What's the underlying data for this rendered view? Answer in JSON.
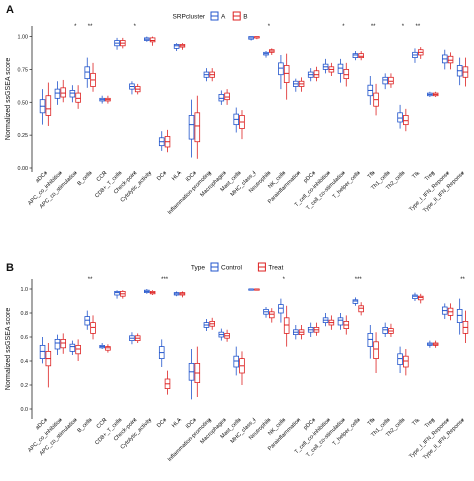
{
  "chart_data": [
    {
      "type": "boxplot",
      "panel": "A",
      "ylabel": "Normalized ssGSEA score",
      "ylim": [
        0,
        1.05
      ],
      "yticks": [
        "0.00",
        "0.25",
        "0.50",
        "0.75",
        "1.00"
      ],
      "legend": {
        "title": "SRPcluster",
        "position": "top-center",
        "entries": [
          "A",
          "B"
        ]
      },
      "series": [
        {
          "name": "A",
          "color": "#2255cc"
        },
        {
          "name": "B",
          "color": "#dd2222"
        }
      ],
      "categories": [
        "aDCs",
        "APC_co_inhibition",
        "APC_co_stimulation",
        "B_cells",
        "CCR",
        "CD8+_T_cells",
        "Check-point",
        "Cytolytic_activity",
        "DCs",
        "HLA",
        "iDCs",
        "Inflammation-promoting",
        "Macrophages",
        "Mast_cells",
        "MHC_class_I",
        "Neutrophils",
        "NK_cells",
        "Parainflammation",
        "pDCs",
        "T_cell_co-inhibition",
        "T_cell_co-stimulation",
        "T_helper_cells",
        "Tfh",
        "Th1_cells",
        "Th2_cells",
        "TIL",
        "Treg",
        "Type_I_IFN_Reponse",
        "Type_II_IFN_Reponse"
      ],
      "significance": [
        "",
        "",
        "*",
        "**",
        "",
        "",
        "*",
        "",
        "",
        "",
        "",
        "",
        "",
        "",
        "",
        "*",
        "",
        "",
        "",
        "",
        "*",
        "",
        "**",
        "",
        "*",
        "**",
        "",
        "",
        ""
      ],
      "boxes": [
        [
          [
            0.33,
            0.42,
            0.47,
            0.52,
            0.6
          ],
          [
            0.32,
            0.4,
            0.45,
            0.55,
            0.65
          ]
        ],
        [
          [
            0.48,
            0.53,
            0.57,
            0.6,
            0.66
          ],
          [
            0.5,
            0.54,
            0.57,
            0.61,
            0.67
          ]
        ],
        [
          [
            0.5,
            0.54,
            0.57,
            0.59,
            0.63
          ],
          [
            0.45,
            0.5,
            0.53,
            0.57,
            0.63
          ]
        ],
        [
          [
            0.61,
            0.68,
            0.73,
            0.77,
            0.84
          ],
          [
            0.58,
            0.62,
            0.67,
            0.72,
            0.8
          ]
        ],
        [
          [
            0.49,
            0.51,
            0.52,
            0.53,
            0.55
          ],
          [
            0.49,
            0.51,
            0.52,
            0.53,
            0.55
          ]
        ],
        [
          [
            0.9,
            0.93,
            0.95,
            0.97,
            0.99
          ],
          [
            0.91,
            0.93,
            0.95,
            0.97,
            0.99
          ]
        ],
        [
          [
            0.56,
            0.6,
            0.62,
            0.64,
            0.66
          ],
          [
            0.56,
            0.58,
            0.6,
            0.62,
            0.64
          ]
        ],
        [
          [
            0.96,
            0.97,
            0.98,
            0.99,
            1.0
          ],
          [
            0.93,
            0.96,
            0.97,
            0.99,
            1.0
          ]
        ],
        [
          [
            0.13,
            0.17,
            0.2,
            0.23,
            0.28
          ],
          [
            0.12,
            0.16,
            0.2,
            0.24,
            0.29
          ]
        ],
        [
          [
            0.89,
            0.91,
            0.93,
            0.94,
            0.95
          ],
          [
            0.9,
            0.92,
            0.93,
            0.94,
            0.95
          ]
        ],
        [
          [
            0.08,
            0.22,
            0.33,
            0.4,
            0.52
          ],
          [
            0.07,
            0.2,
            0.32,
            0.42,
            0.55
          ]
        ],
        [
          [
            0.66,
            0.69,
            0.71,
            0.73,
            0.76
          ],
          [
            0.66,
            0.69,
            0.71,
            0.73,
            0.76
          ]
        ],
        [
          [
            0.48,
            0.51,
            0.53,
            0.56,
            0.59
          ],
          [
            0.48,
            0.52,
            0.54,
            0.57,
            0.6
          ]
        ],
        [
          [
            0.27,
            0.33,
            0.37,
            0.41,
            0.46
          ],
          [
            0.22,
            0.3,
            0.35,
            0.4,
            0.44
          ]
        ],
        [
          [
            0.97,
            0.98,
            0.99,
            1.0,
            1.0
          ],
          [
            0.98,
            0.99,
            0.99,
            1.0,
            1.0
          ]
        ],
        [
          [
            0.84,
            0.86,
            0.87,
            0.88,
            0.89
          ],
          [
            0.86,
            0.88,
            0.89,
            0.9,
            0.91
          ]
        ],
        [
          [
            0.6,
            0.71,
            0.76,
            0.8,
            0.86
          ],
          [
            0.52,
            0.65,
            0.72,
            0.78,
            0.87
          ]
        ],
        [
          [
            0.58,
            0.62,
            0.64,
            0.66,
            0.68
          ],
          [
            0.58,
            0.62,
            0.64,
            0.66,
            0.69
          ]
        ],
        [
          [
            0.66,
            0.69,
            0.71,
            0.73,
            0.76
          ],
          [
            0.66,
            0.69,
            0.71,
            0.74,
            0.77
          ]
        ],
        [
          [
            0.72,
            0.75,
            0.77,
            0.79,
            0.83
          ],
          [
            0.7,
            0.73,
            0.75,
            0.77,
            0.8
          ]
        ],
        [
          [
            0.65,
            0.72,
            0.76,
            0.79,
            0.83
          ],
          [
            0.62,
            0.68,
            0.71,
            0.75,
            0.8
          ]
        ],
        [
          [
            0.82,
            0.84,
            0.86,
            0.87,
            0.89
          ],
          [
            0.82,
            0.84,
            0.85,
            0.87,
            0.89
          ]
        ],
        [
          [
            0.48,
            0.55,
            0.59,
            0.63,
            0.7
          ],
          [
            0.4,
            0.47,
            0.52,
            0.57,
            0.64
          ]
        ],
        [
          [
            0.6,
            0.64,
            0.67,
            0.69,
            0.72
          ],
          [
            0.61,
            0.64,
            0.66,
            0.69,
            0.72
          ]
        ],
        [
          [
            0.3,
            0.35,
            0.38,
            0.42,
            0.48
          ],
          [
            0.28,
            0.33,
            0.36,
            0.4,
            0.45
          ]
        ],
        [
          [
            0.8,
            0.84,
            0.86,
            0.88,
            0.91
          ],
          [
            0.83,
            0.86,
            0.88,
            0.9,
            0.92
          ]
        ],
        [
          [
            0.54,
            0.55,
            0.56,
            0.57,
            0.58
          ],
          [
            0.54,
            0.55,
            0.56,
            0.57,
            0.58
          ]
        ],
        [
          [
            0.75,
            0.8,
            0.83,
            0.86,
            0.9
          ],
          [
            0.75,
            0.8,
            0.82,
            0.85,
            0.88
          ]
        ],
        [
          [
            0.63,
            0.7,
            0.74,
            0.78,
            0.84
          ],
          [
            0.62,
            0.69,
            0.73,
            0.77,
            0.84
          ]
        ]
      ]
    },
    {
      "type": "boxplot",
      "panel": "B",
      "ylabel": "Normalized ssGSEA score",
      "ylim": [
        -0.05,
        1.05
      ],
      "yticks": [
        "0.0",
        "0.2",
        "0.4",
        "0.6",
        "0.8",
        "1.0"
      ],
      "legend": {
        "title": "Type",
        "position": "top-center",
        "entries": [
          "Control",
          "Treat"
        ]
      },
      "series": [
        {
          "name": "Control",
          "color": "#2255cc"
        },
        {
          "name": "Treat",
          "color": "#dd2222"
        }
      ],
      "categories": [
        "aDCs",
        "APC_co_inhibition",
        "APC_co_stimulation",
        "B_cells",
        "CCR",
        "CD8+_T_cells",
        "Check-point",
        "Cytolytic_activity",
        "DCs",
        "HLA",
        "iDCs",
        "Inflammation-promoting",
        "Macrophages",
        "Mast_cells",
        "MHC_class_I",
        "Neutrophils",
        "NK_cells",
        "Parainflammation",
        "pDCs",
        "T_cell_co-inhibition",
        "T_cell_co-stimulation",
        "T_helper_cells",
        "Tfh",
        "Th1_cells",
        "Th2_cells",
        "TIL",
        "Treg",
        "Type_I_IFN_Reponse",
        "Type_II_IFN_Reponse"
      ],
      "significance": [
        "",
        "",
        "",
        "**",
        "",
        "",
        "",
        "",
        "***",
        "",
        "",
        "",
        "",
        "",
        "",
        "",
        "*",
        "",
        "",
        "",
        "",
        "***",
        "",
        "",
        "",
        "",
        "",
        "",
        "**"
      ],
      "boxes": [
        [
          [
            0.38,
            0.42,
            0.48,
            0.53,
            0.6
          ],
          [
            0.18,
            0.36,
            0.42,
            0.48,
            0.55
          ]
        ],
        [
          [
            0.45,
            0.5,
            0.55,
            0.58,
            0.62
          ],
          [
            0.46,
            0.51,
            0.55,
            0.58,
            0.63
          ]
        ],
        [
          [
            0.45,
            0.48,
            0.52,
            0.54,
            0.57
          ],
          [
            0.4,
            0.46,
            0.5,
            0.53,
            0.58
          ]
        ],
        [
          [
            0.66,
            0.7,
            0.74,
            0.77,
            0.82
          ],
          [
            0.58,
            0.63,
            0.68,
            0.72,
            0.78
          ]
        ],
        [
          [
            0.5,
            0.51,
            0.52,
            0.53,
            0.55
          ],
          [
            0.47,
            0.49,
            0.51,
            0.52,
            0.54
          ]
        ],
        [
          [
            0.92,
            0.95,
            0.97,
            0.98,
            0.99
          ],
          [
            0.92,
            0.94,
            0.96,
            0.98,
            0.99
          ]
        ],
        [
          [
            0.54,
            0.57,
            0.59,
            0.61,
            0.64
          ],
          [
            0.55,
            0.57,
            0.59,
            0.61,
            0.63
          ]
        ],
        [
          [
            0.96,
            0.97,
            0.98,
            0.99,
            1.0
          ],
          [
            0.95,
            0.96,
            0.97,
            0.98,
            0.99
          ]
        ],
        [
          [
            0.35,
            0.42,
            0.47,
            0.52,
            0.58
          ],
          [
            0.12,
            0.17,
            0.21,
            0.25,
            0.32
          ]
        ],
        [
          [
            0.94,
            0.95,
            0.96,
            0.97,
            0.98
          ],
          [
            0.93,
            0.95,
            0.96,
            0.97,
            0.98
          ]
        ],
        [
          [
            0.08,
            0.24,
            0.31,
            0.38,
            0.5
          ],
          [
            0.1,
            0.22,
            0.3,
            0.38,
            0.52
          ]
        ],
        [
          [
            0.65,
            0.68,
            0.7,
            0.72,
            0.75
          ],
          [
            0.66,
            0.69,
            0.71,
            0.73,
            0.76
          ]
        ],
        [
          [
            0.57,
            0.6,
            0.62,
            0.64,
            0.67
          ],
          [
            0.56,
            0.59,
            0.61,
            0.63,
            0.66
          ]
        ],
        [
          [
            0.28,
            0.35,
            0.4,
            0.44,
            0.52
          ],
          [
            0.2,
            0.3,
            0.36,
            0.42,
            0.48
          ]
        ],
        [
          [
            0.99,
            0.99,
            1.0,
            1.0,
            1.0
          ],
          [
            0.99,
            0.99,
            1.0,
            1.0,
            1.0
          ]
        ],
        [
          [
            0.76,
            0.79,
            0.81,
            0.83,
            0.85
          ],
          [
            0.72,
            0.76,
            0.79,
            0.81,
            0.84
          ]
        ],
        [
          [
            0.72,
            0.8,
            0.84,
            0.87,
            0.92
          ],
          [
            0.52,
            0.63,
            0.7,
            0.76,
            0.86
          ]
        ],
        [
          [
            0.58,
            0.62,
            0.64,
            0.66,
            0.7
          ],
          [
            0.58,
            0.62,
            0.64,
            0.66,
            0.7
          ]
        ],
        [
          [
            0.6,
            0.64,
            0.66,
            0.68,
            0.72
          ],
          [
            0.61,
            0.64,
            0.66,
            0.68,
            0.72
          ]
        ],
        [
          [
            0.69,
            0.72,
            0.74,
            0.76,
            0.8
          ],
          [
            0.66,
            0.7,
            0.72,
            0.74,
            0.78
          ]
        ],
        [
          [
            0.66,
            0.7,
            0.74,
            0.76,
            0.8
          ],
          [
            0.62,
            0.67,
            0.7,
            0.73,
            0.78
          ]
        ],
        [
          [
            0.86,
            0.88,
            0.9,
            0.91,
            0.93
          ],
          [
            0.78,
            0.81,
            0.84,
            0.86,
            0.89
          ]
        ],
        [
          [
            0.42,
            0.52,
            0.58,
            0.63,
            0.7
          ],
          [
            0.3,
            0.42,
            0.5,
            0.56,
            0.64
          ]
        ],
        [
          [
            0.6,
            0.63,
            0.66,
            0.68,
            0.72
          ],
          [
            0.6,
            0.63,
            0.65,
            0.67,
            0.71
          ]
        ],
        [
          [
            0.3,
            0.37,
            0.42,
            0.46,
            0.52
          ],
          [
            0.28,
            0.35,
            0.4,
            0.44,
            0.5
          ]
        ],
        [
          [
            0.9,
            0.92,
            0.94,
            0.95,
            0.97
          ],
          [
            0.88,
            0.91,
            0.93,
            0.94,
            0.96
          ]
        ],
        [
          [
            0.51,
            0.53,
            0.54,
            0.55,
            0.57
          ],
          [
            0.51,
            0.53,
            0.54,
            0.55,
            0.57
          ]
        ],
        [
          [
            0.75,
            0.79,
            0.82,
            0.85,
            0.88
          ],
          [
            0.74,
            0.78,
            0.81,
            0.84,
            0.88
          ]
        ],
        [
          [
            0.62,
            0.72,
            0.78,
            0.83,
            0.92
          ],
          [
            0.55,
            0.63,
            0.68,
            0.73,
            0.82
          ]
        ]
      ]
    }
  ]
}
